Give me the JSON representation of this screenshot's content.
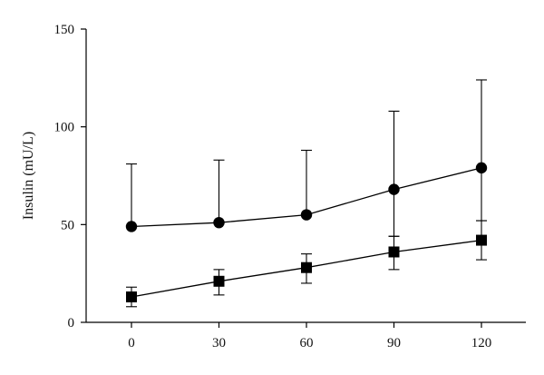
{
  "chart_data": {
    "type": "line",
    "xlabel": "",
    "ylabel": "Insulin (mU/L)",
    "x": [
      0,
      30,
      60,
      90,
      120
    ],
    "xticks": [
      "0",
      "30",
      "60",
      "90",
      "120"
    ],
    "xlim": [
      -12,
      135
    ],
    "ylim": [
      0,
      150
    ],
    "yticks": [
      "0",
      "50",
      "100",
      "150"
    ],
    "grid": false,
    "series": [
      {
        "marker": "circle",
        "values": [
          49,
          51,
          55,
          68,
          79
        ],
        "err_upper": [
          81,
          83,
          88,
          108,
          124
        ],
        "err_lower": [
          49,
          51,
          55,
          44,
          52
        ]
      },
      {
        "marker": "square",
        "values": [
          13,
          21,
          28,
          36,
          42
        ],
        "err_upper": [
          18,
          27,
          35,
          44,
          52
        ],
        "err_lower": [
          8,
          14,
          20,
          27,
          32
        ]
      }
    ]
  }
}
